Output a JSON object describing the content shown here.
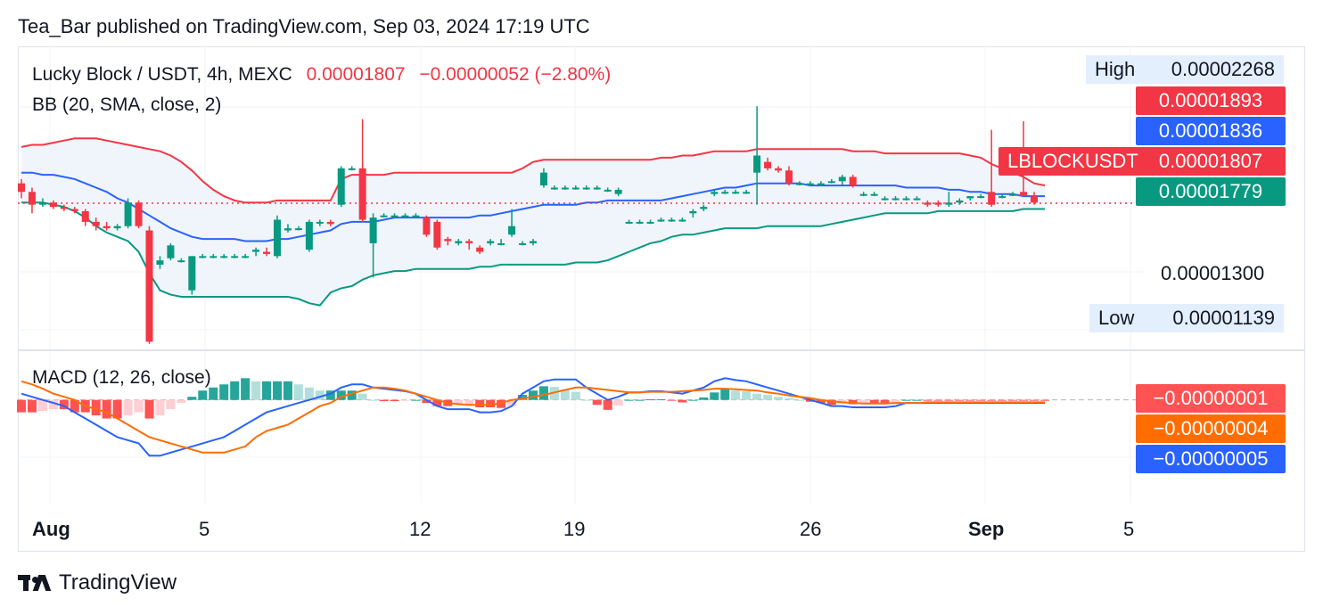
{
  "header": {
    "publisher": "Tea_Bar published on TradingView.com, Sep 03, 2024 17:19 UTC"
  },
  "legend": {
    "symbol": "Lucky Block / USDT, 4h, MEXC",
    "last": "0.00001807",
    "change": "−0.00000052 (−2.80%)",
    "bb": "BB (20, SMA, close, 2)",
    "macd": "MACD (12, 26, close)"
  },
  "price_axis": {
    "labels": [
      "0.00001300"
    ],
    "high_label": "High",
    "high_value": "0.00002268",
    "low_label": "Low",
    "low_value": "0.00001139",
    "bb_upper": "0.00001893",
    "bb_basis": "0.00001836",
    "ticker": "LBLOCKUSDT",
    "last": "0.00001807",
    "bb_lower": "0.00001779"
  },
  "macd_axis": {
    "histogram": "−0.00000001",
    "signal": "−0.00000004",
    "macd": "−0.00000005"
  },
  "time_axis": [
    "Aug",
    "5",
    "12",
    "19",
    "26",
    "Sep",
    "5"
  ],
  "footer": {
    "brand": "TradingView"
  },
  "colors": {
    "up": "#089981",
    "down": "#f23645",
    "bb_upper": "#f23645",
    "bb_basis": "#2962ff",
    "bb_lower": "#089981",
    "bb_fill": "#eef4fb",
    "macd_line": "#2962ff",
    "signal_line": "#ff6d00"
  },
  "chart_data": [
    {
      "type": "candlestick",
      "title": "Lucky Block / USDT, 4h, MEXC",
      "ylim": [
        1.12e-05,
        2.54e-05
      ],
      "x_ticks": [
        "Aug",
        "5",
        "12",
        "19",
        "26",
        "Sep",
        "5"
      ],
      "candles": [
        [
          1.9e-05,
          1.92e-05,
          1.83e-05,
          1.86e-05
        ],
        [
          1.86e-05,
          1.88e-05,
          1.76e-05,
          1.8e-05
        ],
        [
          1.8e-05,
          1.83e-05,
          1.79e-05,
          1.81e-05
        ],
        [
          1.81e-05,
          1.82e-05,
          1.78e-05,
          1.79e-05
        ],
        [
          1.79e-05,
          1.8e-05,
          1.77e-05,
          1.78e-05
        ],
        [
          1.78e-05,
          1.79e-05,
          1.76e-05,
          1.77e-05
        ],
        [
          1.77e-05,
          1.78e-05,
          1.7e-05,
          1.72e-05
        ],
        [
          1.72e-05,
          1.74e-05,
          1.68e-05,
          1.7e-05
        ],
        [
          1.7e-05,
          1.72e-05,
          1.68e-05,
          1.69e-05
        ],
        [
          1.69e-05,
          1.71e-05,
          1.68e-05,
          1.7e-05
        ],
        [
          1.7e-05,
          1.83e-05,
          1.69e-05,
          1.81e-05
        ],
        [
          1.81e-05,
          1.82e-05,
          1.69e-05,
          1.7e-05
        ],
        [
          1.68e-05,
          1.7e-05,
          1.15e-05,
          1.16e-05
        ],
        [
          1.52e-05,
          1.56e-05,
          1.5e-05,
          1.54e-05
        ],
        [
          1.55e-05,
          1.62e-05,
          1.54e-05,
          1.61e-05
        ],
        [
          1.54e-05,
          1.55e-05,
          1.53e-05,
          1.54e-05
        ],
        [
          1.4e-05,
          1.56e-05,
          1.38e-05,
          1.56e-05
        ],
        [
          1.56e-05,
          1.57e-05,
          1.55e-05,
          1.56e-05
        ],
        [
          1.56e-05,
          1.57e-05,
          1.55e-05,
          1.56e-05
        ],
        [
          1.56e-05,
          1.57e-05,
          1.55e-05,
          1.56e-05
        ],
        [
          1.56e-05,
          1.57e-05,
          1.55e-05,
          1.56e-05
        ],
        [
          1.56e-05,
          1.57e-05,
          1.55e-05,
          1.56e-05
        ],
        [
          1.58e-05,
          1.6e-05,
          1.56e-05,
          1.59e-05
        ],
        [
          1.58e-05,
          1.6e-05,
          1.56e-05,
          1.57e-05
        ],
        [
          1.56e-05,
          1.75e-05,
          1.55e-05,
          1.73e-05
        ],
        [
          1.68e-05,
          1.71e-05,
          1.67e-05,
          1.69e-05
        ],
        [
          1.69e-05,
          1.7e-05,
          1.68e-05,
          1.69e-05
        ],
        [
          1.59e-05,
          1.73e-05,
          1.58e-05,
          1.72e-05
        ],
        [
          1.72e-05,
          1.73e-05,
          1.7e-05,
          1.72e-05
        ],
        [
          1.72e-05,
          1.73e-05,
          1.7e-05,
          1.71e-05
        ],
        [
          1.8e-05,
          1.98e-05,
          1.79e-05,
          1.97e-05
        ],
        [
          1.97e-05,
          1.98e-05,
          1.96e-05,
          1.97e-05
        ],
        [
          1.97e-05,
          2.2e-05,
          1.72e-05,
          1.73e-05
        ],
        [
          1.62e-05,
          1.76e-05,
          1.46e-05,
          1.74e-05
        ],
        [
          1.75e-05,
          1.76e-05,
          1.74e-05,
          1.75e-05
        ],
        [
          1.75e-05,
          1.76e-05,
          1.74e-05,
          1.75e-05
        ],
        [
          1.75e-05,
          1.76e-05,
          1.74e-05,
          1.75e-05
        ],
        [
          1.75e-05,
          1.76e-05,
          1.74e-05,
          1.75e-05
        ],
        [
          1.74e-05,
          1.75e-05,
          1.65e-05,
          1.66e-05
        ],
        [
          1.72e-05,
          1.73e-05,
          1.59e-05,
          1.6e-05
        ],
        [
          1.64e-05,
          1.65e-05,
          1.61e-05,
          1.63e-05
        ],
        [
          1.62e-05,
          1.64e-05,
          1.61e-05,
          1.63e-05
        ],
        [
          1.63e-05,
          1.64e-05,
          1.59e-05,
          1.62e-05
        ],
        [
          1.6e-05,
          1.61e-05,
          1.57e-05,
          1.58e-05
        ],
        [
          1.62e-05,
          1.64e-05,
          1.61e-05,
          1.63e-05
        ],
        [
          1.62e-05,
          1.64e-05,
          1.61e-05,
          1.62e-05
        ],
        [
          1.66e-05,
          1.78e-05,
          1.65e-05,
          1.7e-05
        ],
        [
          1.62e-05,
          1.63e-05,
          1.61e-05,
          1.62e-05
        ],
        [
          1.62e-05,
          1.64e-05,
          1.61e-05,
          1.63e-05
        ],
        [
          1.89e-05,
          1.97e-05,
          1.88e-05,
          1.95e-05
        ],
        [
          1.88e-05,
          1.89e-05,
          1.87e-05,
          1.88e-05
        ],
        [
          1.88e-05,
          1.89e-05,
          1.87e-05,
          1.88e-05
        ],
        [
          1.88e-05,
          1.89e-05,
          1.87e-05,
          1.88e-05
        ],
        [
          1.88e-05,
          1.89e-05,
          1.87e-05,
          1.88e-05
        ],
        [
          1.88e-05,
          1.89e-05,
          1.87e-05,
          1.88e-05
        ],
        [
          1.87e-05,
          1.88e-05,
          1.86e-05,
          1.87e-05
        ],
        [
          1.85e-05,
          1.88e-05,
          1.84e-05,
          1.87e-05
        ],
        [
          1.72e-05,
          1.73e-05,
          1.71e-05,
          1.72e-05
        ],
        [
          1.72e-05,
          1.73e-05,
          1.71e-05,
          1.72e-05
        ],
        [
          1.72e-05,
          1.73e-05,
          1.71e-05,
          1.72e-05
        ],
        [
          1.73e-05,
          1.74e-05,
          1.72e-05,
          1.73e-05
        ],
        [
          1.73e-05,
          1.74e-05,
          1.72e-05,
          1.73e-05
        ],
        [
          1.73e-05,
          1.74e-05,
          1.72e-05,
          1.73e-05
        ],
        [
          1.76e-05,
          1.78e-05,
          1.74e-05,
          1.77e-05
        ],
        [
          1.78e-05,
          1.8e-05,
          1.77e-05,
          1.79e-05
        ],
        [
          1.85e-05,
          1.87e-05,
          1.84e-05,
          1.86e-05
        ],
        [
          1.86e-05,
          1.87e-05,
          1.85e-05,
          1.86e-05
        ],
        [
          1.86e-05,
          1.87e-05,
          1.85e-05,
          1.86e-05
        ],
        [
          1.86e-05,
          1.87e-05,
          1.85e-05,
          1.86e-05
        ],
        [
          1.95e-05,
          2.26e-05,
          1.8e-05,
          2.03e-05
        ],
        [
          2e-05,
          2.02e-05,
          1.96e-05,
          1.97e-05
        ],
        [
          1.97e-05,
          1.98e-05,
          1.95e-05,
          1.96e-05
        ],
        [
          1.96e-05,
          1.98e-05,
          1.89e-05,
          1.9e-05
        ],
        [
          1.9e-05,
          1.91e-05,
          1.89e-05,
          1.9e-05
        ],
        [
          1.9e-05,
          1.91e-05,
          1.89e-05,
          1.9e-05
        ],
        [
          1.9e-05,
          1.91e-05,
          1.89e-05,
          1.9e-05
        ],
        [
          1.91e-05,
          1.92e-05,
          1.9e-05,
          1.91e-05
        ],
        [
          1.91e-05,
          1.94e-05,
          1.89e-05,
          1.93e-05
        ],
        [
          1.93e-05,
          1.94e-05,
          1.88e-05,
          1.89e-05
        ],
        [
          1.85e-05,
          1.86e-05,
          1.84e-05,
          1.85e-05
        ],
        [
          1.85e-05,
          1.86e-05,
          1.84e-05,
          1.85e-05
        ],
        [
          1.83e-05,
          1.84e-05,
          1.82e-05,
          1.83e-05
        ],
        [
          1.83e-05,
          1.84e-05,
          1.82e-05,
          1.83e-05
        ],
        [
          1.83e-05,
          1.84e-05,
          1.82e-05,
          1.83e-05
        ],
        [
          1.83e-05,
          1.84e-05,
          1.82e-05,
          1.83e-05
        ],
        [
          1.81e-05,
          1.82e-05,
          1.79e-05,
          1.8e-05
        ],
        [
          1.81e-05,
          1.82e-05,
          1.79e-05,
          1.8e-05
        ],
        [
          1.8e-05,
          1.86e-05,
          1.79e-05,
          1.81e-05
        ],
        [
          1.81e-05,
          1.83e-05,
          1.8e-05,
          1.82e-05
        ],
        [
          1.83e-05,
          1.84e-05,
          1.82e-05,
          1.84e-05
        ],
        [
          1.84e-05,
          1.85e-05,
          1.83e-05,
          1.84e-05
        ],
        [
          1.86e-05,
          2.15e-05,
          1.79e-05,
          1.8e-05
        ],
        [
          1.84e-05,
          1.85e-05,
          1.83e-05,
          1.84e-05
        ],
        [
          1.85e-05,
          1.86e-05,
          1.84e-05,
          1.85e-05
        ],
        [
          1.86e-05,
          2.19e-05,
          1.85e-05,
          1.84e-05
        ],
        [
          1.84e-05,
          1.86e-05,
          1.8e-05,
          1.81e-05
        ]
      ],
      "bb_upper": [
        2.07e-05,
        2.08e-05,
        2.08e-05,
        2.09e-05,
        2.1e-05,
        2.11e-05,
        2.11e-05,
        2.11e-05,
        2.1e-05,
        2.09e-05,
        2.08e-05,
        2.07e-05,
        2.06e-05,
        2.05e-05,
        2.03e-05,
        2e-05,
        1.96e-05,
        1.91e-05,
        1.87e-05,
        1.84e-05,
        1.82e-05,
        1.81e-05,
        1.81e-05,
        1.81e-05,
        1.82e-05,
        1.82e-05,
        1.82e-05,
        1.82e-05,
        1.82e-05,
        1.82e-05,
        1.92e-05,
        1.94e-05,
        1.94e-05,
        1.94e-05,
        1.94e-05,
        1.95e-05,
        1.95e-05,
        1.95e-05,
        1.95e-05,
        1.95e-05,
        1.95e-05,
        1.95e-05,
        1.95e-05,
        1.95e-05,
        1.95e-05,
        1.95e-05,
        1.95e-05,
        1.97e-05,
        2e-05,
        2.01e-05,
        2.01e-05,
        2.01e-05,
        2.01e-05,
        2.01e-05,
        2.01e-05,
        2.01e-05,
        2.01e-05,
        2.01e-05,
        2.01e-05,
        2.01e-05,
        2.02e-05,
        2.02e-05,
        2.03e-05,
        2.03e-05,
        2.04e-05,
        2.05e-05,
        2.05e-05,
        2.05e-05,
        2.05e-05,
        2.06e-05,
        2.06e-05,
        2.06e-05,
        2.06e-05,
        2.06e-05,
        2.06e-05,
        2.06e-05,
        2.06e-05,
        2.06e-05,
        2.05e-05,
        2.05e-05,
        2.05e-05,
        2.04e-05,
        2.04e-05,
        2.04e-05,
        2.04e-05,
        2.04e-05,
        2.04e-05,
        2.04e-05,
        2.04e-05,
        2.03e-05,
        2.02e-05,
        1.99e-05,
        1.97e-05,
        1.95e-05,
        1.93e-05,
        1.9e-05,
        1.89e-05
      ],
      "bb_basis": [
        1.95e-05,
        1.95e-05,
        1.94e-05,
        1.94e-05,
        1.93e-05,
        1.92e-05,
        1.9e-05,
        1.88e-05,
        1.86e-05,
        1.83e-05,
        1.81e-05,
        1.78e-05,
        1.75e-05,
        1.72e-05,
        1.69e-05,
        1.67e-05,
        1.65e-05,
        1.64e-05,
        1.64e-05,
        1.64e-05,
        1.64e-05,
        1.63e-05,
        1.63e-05,
        1.63e-05,
        1.64e-05,
        1.64e-05,
        1.65e-05,
        1.66e-05,
        1.67e-05,
        1.68e-05,
        1.71e-05,
        1.72e-05,
        1.72e-05,
        1.72e-05,
        1.73e-05,
        1.74e-05,
        1.74e-05,
        1.74e-05,
        1.74e-05,
        1.74e-05,
        1.74e-05,
        1.74e-05,
        1.74e-05,
        1.75e-05,
        1.75e-05,
        1.76e-05,
        1.77e-05,
        1.78e-05,
        1.79e-05,
        1.8e-05,
        1.8e-05,
        1.8e-05,
        1.8e-05,
        1.81e-05,
        1.81e-05,
        1.82e-05,
        1.82e-05,
        1.82e-05,
        1.82e-05,
        1.82e-05,
        1.82e-05,
        1.83e-05,
        1.84e-05,
        1.85e-05,
        1.86e-05,
        1.87e-05,
        1.88e-05,
        1.88e-05,
        1.89e-05,
        1.9e-05,
        1.9e-05,
        1.9e-05,
        1.9e-05,
        1.9e-05,
        1.89e-05,
        1.89e-05,
        1.89e-05,
        1.89e-05,
        1.89e-05,
        1.89e-05,
        1.89e-05,
        1.89e-05,
        1.89e-05,
        1.88e-05,
        1.88e-05,
        1.88e-05,
        1.88e-05,
        1.87e-05,
        1.87e-05,
        1.86e-05,
        1.86e-05,
        1.85e-05,
        1.85e-05,
        1.85e-05,
        1.84e-05,
        1.84e-05,
        1.84e-05
      ],
      "bb_lower": [
        1.81e-05,
        1.81e-05,
        1.81e-05,
        1.8e-05,
        1.79e-05,
        1.77e-05,
        1.74e-05,
        1.7e-05,
        1.67e-05,
        1.65e-05,
        1.63e-05,
        1.58e-05,
        1.48e-05,
        1.4e-05,
        1.38e-05,
        1.37e-05,
        1.37e-05,
        1.37e-05,
        1.37e-05,
        1.37e-05,
        1.37e-05,
        1.37e-05,
        1.37e-05,
        1.37e-05,
        1.37e-05,
        1.37e-05,
        1.36e-05,
        1.34e-05,
        1.33e-05,
        1.39e-05,
        1.41e-05,
        1.42e-05,
        1.45e-05,
        1.47e-05,
        1.48e-05,
        1.49e-05,
        1.49e-05,
        1.5e-05,
        1.5e-05,
        1.5e-05,
        1.5e-05,
        1.5e-05,
        1.5e-05,
        1.51e-05,
        1.51e-05,
        1.52e-05,
        1.52e-05,
        1.52e-05,
        1.52e-05,
        1.52e-05,
        1.52e-05,
        1.52e-05,
        1.53e-05,
        1.53e-05,
        1.53e-05,
        1.54e-05,
        1.56e-05,
        1.58e-05,
        1.6e-05,
        1.62e-05,
        1.63e-05,
        1.65e-05,
        1.66e-05,
        1.66e-05,
        1.67e-05,
        1.68e-05,
        1.69e-05,
        1.69e-05,
        1.69e-05,
        1.69e-05,
        1.7e-05,
        1.7e-05,
        1.7e-05,
        1.7e-05,
        1.7e-05,
        1.7e-05,
        1.71e-05,
        1.72e-05,
        1.73e-05,
        1.74e-05,
        1.75e-05,
        1.76e-05,
        1.76e-05,
        1.76e-05,
        1.76e-05,
        1.76e-05,
        1.77e-05,
        1.77e-05,
        1.77e-05,
        1.77e-05,
        1.77e-05,
        1.77e-05,
        1.77e-05,
        1.77e-05,
        1.78e-05,
        1.78e-05,
        1.78e-05
      ],
      "last_price": 1.807e-05,
      "high": 2.268e-05,
      "low": 1.139e-05
    },
    {
      "type": "macd",
      "title": "MACD (12, 26, close)",
      "ylim": [
        -1.6e-06,
        8e-07
      ],
      "macd": [
        1e-07,
        5e-08,
        0.0,
        -5e-08,
        -1e-07,
        -2e-07,
        -3e-07,
        -4e-07,
        -5e-07,
        -6e-07,
        -6.5e-07,
        -7e-07,
        -9e-07,
        -9e-07,
        -8.5e-07,
        -8e-07,
        -7.5e-07,
        -7e-07,
        -6.5e-07,
        -6e-07,
        -5e-07,
        -4e-07,
        -3e-07,
        -2e-07,
        -1.5e-07,
        -1e-07,
        -5e-08,
        0.0,
        5e-08,
        1e-07,
        2e-07,
        2.5e-07,
        2.5e-07,
        2e-07,
        1.8e-07,
        1.6e-07,
        1.4e-07,
        1e-07,
        0.0,
        -1e-07,
        -1.5e-07,
        -1.5e-07,
        -1.5e-07,
        -2e-07,
        -2e-07,
        -1.8e-07,
        -1e-07,
        1e-07,
        2e-07,
        3e-07,
        3.3e-07,
        3.3e-07,
        3.3e-07,
        2e-07,
        1e-07,
        0.0,
        5e-08,
        1.2e-07,
        1.2e-07,
        1.4e-07,
        1.4e-07,
        1.2e-07,
        1e-07,
        1.5e-07,
        2e-07,
        3e-07,
        3.5e-07,
        3.2e-07,
        3e-07,
        2.5e-07,
        2e-07,
        1.5e-07,
        1e-07,
        5e-08,
        0.0,
        -5e-08,
        -1e-07,
        -1e-07,
        -1.2e-07,
        -1.2e-07,
        -1.2e-07,
        -1.2e-07,
        -1e-07,
        -5e-08,
        -5e-08,
        -5e-08,
        -5e-08,
        -5e-08,
        -5e-08,
        -5e-08,
        -5e-08,
        -5e-08,
        -5e-08,
        -5e-08,
        -5e-08,
        -5e-08,
        -5e-08
      ],
      "signal": [
        3e-07,
        2.5e-07,
        1.8e-07,
        1e-07,
        5e-08,
        0.0,
        -1e-07,
        -1.5e-07,
        -2e-07,
        -3e-07,
        -4e-07,
        -5e-07,
        -6e-07,
        -6.5e-07,
        -7e-07,
        -7.5e-07,
        -8e-07,
        -8.5e-07,
        -8.5e-07,
        -8.5e-07,
        -8e-07,
        -7.5e-07,
        -6e-07,
        -5e-07,
        -4.5e-07,
        -4e-07,
        -3e-07,
        -2e-07,
        -1e-07,
        -5e-08,
        5e-08,
        1e-07,
        1.5e-07,
        2e-07,
        2e-07,
        1.8e-07,
        1.5e-07,
        1e-07,
        5e-08,
        0.0,
        -5e-08,
        -7e-08,
        -8e-08,
        -8e-08,
        -8e-08,
        -5e-08,
        0.0,
        2e-08,
        5e-08,
        8e-08,
        1.2e-07,
        1.6e-07,
        2e-07,
        2e-07,
        1.8e-07,
        1.6e-07,
        1.4e-07,
        1.2e-07,
        1.2e-07,
        1.3e-07,
        1.3e-07,
        1.3e-07,
        1.4e-07,
        1.5e-07,
        1.6e-07,
        1.8e-07,
        1.8e-07,
        1.7e-07,
        1.6e-07,
        1.5e-07,
        1.2e-07,
        1e-07,
        7e-08,
        5e-08,
        3e-08,
        0.0,
        -2e-08,
        -4e-08,
        -5e-08,
        -6e-08,
        -6e-08,
        -6e-08,
        -5e-08,
        -5e-08,
        -5e-08,
        -4e-08,
        -4e-08,
        -4e-08,
        -4e-08,
        -4e-08,
        -4e-08,
        -4e-08,
        -4e-08,
        -4e-08,
        -4e-08,
        -4e-08,
        -4e-08
      ],
      "last_macd": -5e-08,
      "last_signal": -4e-08,
      "last_histogram": -1e-08
    }
  ]
}
